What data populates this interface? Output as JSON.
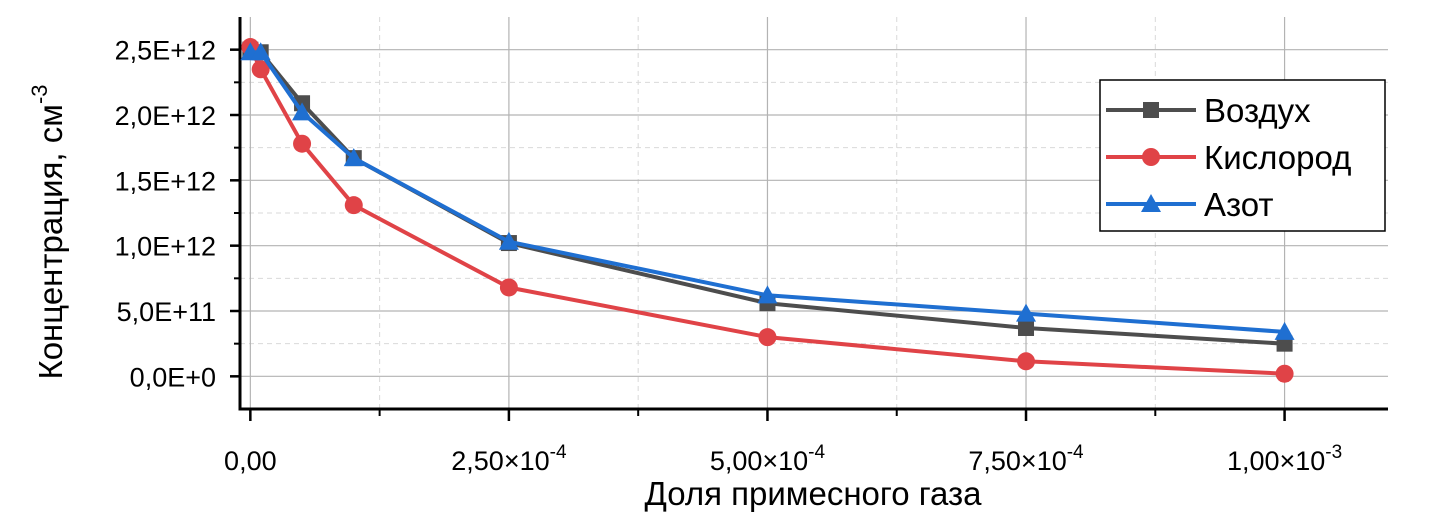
{
  "chart_data": {
    "type": "line",
    "xlabel": "Доля примесного газа",
    "ylabel": "Концентрация, см",
    "ylabel_sup": "-3",
    "xlim": [
      -1e-05,
      0.0011
    ],
    "ylim": [
      -250000000000,
      2750000000000
    ],
    "x_ticks": [
      {
        "value": 0,
        "mantissa": "0,00",
        "exp": ""
      },
      {
        "value": 0.00025,
        "mantissa": "2,50×10",
        "exp": "-4"
      },
      {
        "value": 0.0005,
        "mantissa": "5,00×10",
        "exp": "-4"
      },
      {
        "value": 0.00075,
        "mantissa": "7,50×10",
        "exp": "-4"
      },
      {
        "value": 0.001,
        "mantissa": "1,00×10",
        "exp": "-3"
      }
    ],
    "y_ticks": [
      {
        "value": 0,
        "label": "0,0E+0"
      },
      {
        "value": 500000000000,
        "label": "5,0E+11"
      },
      {
        "value": 1000000000000,
        "label": "1,0E+12"
      },
      {
        "value": 1500000000000,
        "label": "1,5E+12"
      },
      {
        "value": 2000000000000,
        "label": "2,0E+12"
      },
      {
        "value": 2500000000000,
        "label": "2,5E+12"
      }
    ],
    "grid": true,
    "legend_position": "top-right",
    "series": [
      {
        "name": "Воздух",
        "color": "#4d4d4d",
        "marker": "square",
        "points": [
          [
            0,
            2500000000000
          ],
          [
            1e-05,
            2480000000000
          ],
          [
            5e-05,
            2090000000000
          ],
          [
            0.0001,
            1670000000000
          ],
          [
            0.00025,
            1020000000000
          ],
          [
            0.0005,
            560000000000
          ],
          [
            0.00075,
            370000000000
          ],
          [
            0.001,
            250000000000
          ]
        ]
      },
      {
        "name": "Кислород",
        "color": "#e04347",
        "marker": "circle",
        "points": [
          [
            0,
            2520000000000
          ],
          [
            1e-05,
            2350000000000
          ],
          [
            5e-05,
            1780000000000
          ],
          [
            0.0001,
            1310000000000
          ],
          [
            0.00025,
            680000000000
          ],
          [
            0.0005,
            300000000000
          ],
          [
            0.00075,
            115000000000
          ],
          [
            0.001,
            20000000000
          ]
        ]
      },
      {
        "name": "Азот",
        "color": "#1f6fd1",
        "marker": "triangle",
        "points": [
          [
            0,
            2480000000000
          ],
          [
            1e-05,
            2480000000000
          ],
          [
            5e-05,
            2020000000000
          ],
          [
            0.0001,
            1670000000000
          ],
          [
            0.00025,
            1030000000000
          ],
          [
            0.0005,
            620000000000
          ],
          [
            0.00075,
            480000000000
          ],
          [
            0.001,
            340000000000
          ]
        ]
      }
    ]
  }
}
